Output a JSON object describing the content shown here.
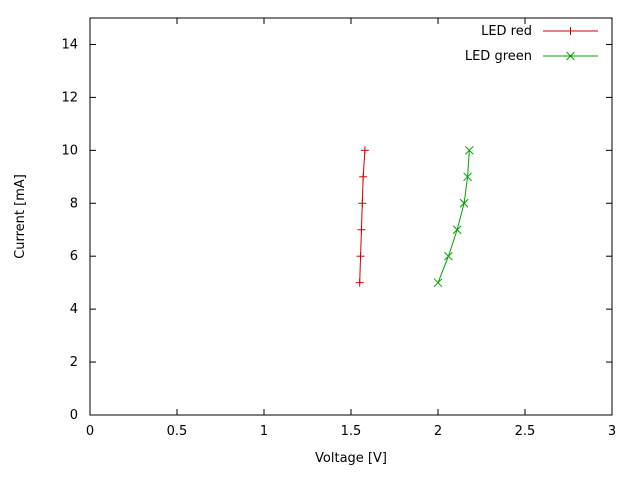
{
  "chart_data": {
    "type": "line",
    "title": "",
    "xlabel": "Voltage [V]",
    "ylabel": "Current [mA]",
    "xlim": [
      0,
      3
    ],
    "ylim": [
      0,
      15
    ],
    "grid": false,
    "legend_position": "top-right-inside",
    "xticks": [
      {
        "v": 0,
        "label": "0"
      },
      {
        "v": 0.5,
        "label": "0.5"
      },
      {
        "v": 1,
        "label": "1"
      },
      {
        "v": 1.5,
        "label": "1.5"
      },
      {
        "v": 2,
        "label": "2"
      },
      {
        "v": 2.5,
        "label": "2.5"
      },
      {
        "v": 3,
        "label": "3"
      }
    ],
    "yticks": [
      {
        "v": 0,
        "label": "0"
      },
      {
        "v": 2,
        "label": "2"
      },
      {
        "v": 4,
        "label": "4"
      },
      {
        "v": 6,
        "label": "6"
      },
      {
        "v": 8,
        "label": "8"
      },
      {
        "v": 10,
        "label": "10"
      },
      {
        "v": 12,
        "label": "12"
      },
      {
        "v": 14,
        "label": "14"
      }
    ],
    "series": [
      {
        "name": "LED red",
        "color": "#d00000",
        "marker": "plus",
        "points": [
          [
            1.55,
            5
          ],
          [
            1.555,
            6
          ],
          [
            1.56,
            7
          ],
          [
            1.565,
            8
          ],
          [
            1.57,
            9
          ],
          [
            1.58,
            10
          ]
        ]
      },
      {
        "name": "LED green",
        "color": "#00a000",
        "marker": "x",
        "points": [
          [
            2.0,
            5
          ],
          [
            2.06,
            6
          ],
          [
            2.11,
            7
          ],
          [
            2.15,
            8
          ],
          [
            2.17,
            9
          ],
          [
            2.18,
            10
          ]
        ]
      }
    ]
  }
}
